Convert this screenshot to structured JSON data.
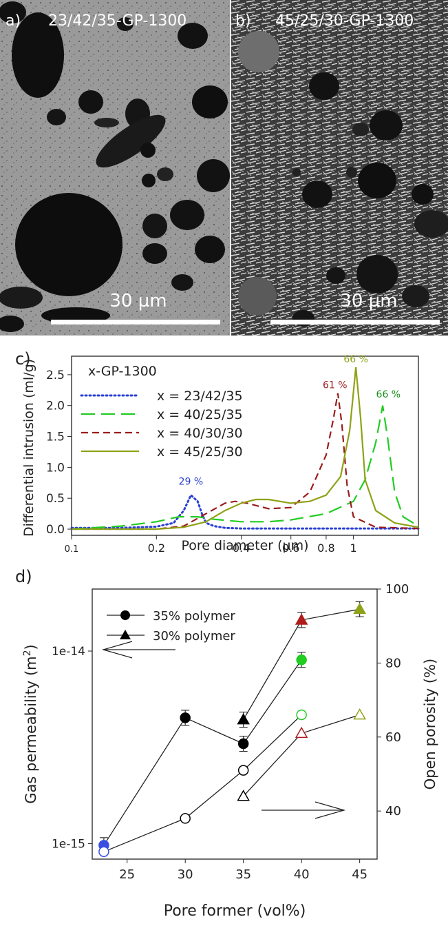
{
  "panels": {
    "a": {
      "letter": "a)",
      "label": "23/42/35-GP-1300",
      "scale": "30 µm"
    },
    "b": {
      "letter": "b)",
      "label": "45/25/30-GP-1300",
      "scale": "30 µm"
    },
    "c_letter": "c)",
    "d_letter": "d)"
  },
  "chart_data": [
    {
      "type": "line",
      "title": "x-GP-1300",
      "xlabel": "Pore diameter (µm)",
      "ylabel": "Differential intrusion (ml/g)",
      "xscale": "log",
      "xlim": [
        0.1,
        1.7
      ],
      "ylim": [
        -0.1,
        2.8
      ],
      "xticks": [
        "0.1",
        "0.2",
        "0.4",
        "0.6",
        "0.8",
        "1"
      ],
      "xtick_values": [
        0.1,
        0.2,
        0.4,
        0.6,
        0.8,
        1.0
      ],
      "yticks": [
        "0.0",
        "0.5",
        "1.0",
        "1.5",
        "2.0",
        "2.5"
      ],
      "ytick_values": [
        0.0,
        0.5,
        1.0,
        1.5,
        2.0,
        2.5
      ],
      "legend_position": "top-left",
      "series": [
        {
          "name": "x = 23/42/35",
          "color": "#2a3fd6",
          "dash": "dotted",
          "x": [
            0.1,
            0.15,
            0.2,
            0.23,
            0.25,
            0.265,
            0.28,
            0.29,
            0.3,
            0.32,
            0.35,
            0.4,
            0.6,
            1.0,
            1.7
          ],
          "y": [
            0.02,
            0.02,
            0.04,
            0.1,
            0.3,
            0.55,
            0.45,
            0.25,
            0.1,
            0.05,
            0.02,
            0.01,
            0.01,
            0.01,
            0.01
          ],
          "peak_label": "29 %",
          "peak_label_color": "#2a3fd6",
          "peak_label_at": [
            0.265,
            0.72
          ]
        },
        {
          "name": "x = 40/25/35",
          "color": "#22cc22",
          "dash": "long-dash",
          "x": [
            0.1,
            0.15,
            0.2,
            0.24,
            0.28,
            0.32,
            0.4,
            0.5,
            0.6,
            0.8,
            1.0,
            1.1,
            1.2,
            1.27,
            1.32,
            1.4,
            1.5,
            1.7
          ],
          "y": [
            0.0,
            0.05,
            0.12,
            0.2,
            0.2,
            0.16,
            0.12,
            0.12,
            0.15,
            0.25,
            0.45,
            0.8,
            1.4,
            2.0,
            1.5,
            0.6,
            0.2,
            0.05
          ],
          "peak_label": "66 %",
          "peak_label_color": "#1a8f1a",
          "peak_label_at": [
            1.33,
            2.13
          ]
        },
        {
          "name": "x = 40/30/30",
          "color": "#9b1c1c",
          "dash": "dashed",
          "x": [
            0.1,
            0.2,
            0.25,
            0.3,
            0.35,
            0.38,
            0.42,
            0.5,
            0.6,
            0.7,
            0.8,
            0.85,
            0.88,
            0.91,
            0.95,
            1.0,
            1.2,
            1.7
          ],
          "y": [
            0.0,
            0.0,
            0.05,
            0.25,
            0.42,
            0.45,
            0.42,
            0.33,
            0.35,
            0.6,
            1.2,
            1.8,
            2.2,
            1.7,
            0.7,
            0.2,
            0.03,
            0.01
          ],
          "peak_label": "61 %",
          "peak_label_color": "#9b1c1c",
          "peak_label_at": [
            0.86,
            2.28
          ]
        },
        {
          "name": "x = 45/25/30",
          "color": "#8fa116",
          "dash": "solid",
          "x": [
            0.1,
            0.2,
            0.25,
            0.3,
            0.35,
            0.4,
            0.45,
            0.5,
            0.6,
            0.7,
            0.8,
            0.9,
            0.97,
            1.02,
            1.06,
            1.1,
            1.2,
            1.4,
            1.7
          ],
          "y": [
            0.0,
            0.0,
            0.03,
            0.12,
            0.3,
            0.42,
            0.48,
            0.48,
            0.42,
            0.45,
            0.55,
            0.85,
            1.6,
            2.62,
            1.8,
            0.8,
            0.3,
            0.1,
            0.03
          ],
          "peak_label": "66 %",
          "peak_label_color": "#8fa116",
          "peak_label_at": [
            1.02,
            2.7
          ]
        }
      ]
    },
    {
      "type": "scatter",
      "xlabel": "Pore former (vol%)",
      "ylabel": "Gas permeability (m²)",
      "ylabel_main": "Gas permeability (m",
      "ylabel_sup": "2",
      "ylabel_close": ")",
      "y2label": "Open porosity (%)",
      "yscale": "log",
      "xlim": [
        22,
        46.5
      ],
      "ylim": [
        8.3e-16,
        2.1e-14
      ],
      "y2lim": [
        27,
        100
      ],
      "xticks": [
        "25",
        "30",
        "35",
        "40",
        "45"
      ],
      "xtick_values": [
        25,
        30,
        35,
        40,
        45
      ],
      "yticks": [
        "1e-14",
        "1e-15"
      ],
      "ytick_values": [
        1e-14,
        1e-15
      ],
      "y2ticks": [
        "40",
        "60",
        "80",
        "100"
      ],
      "y2tick_values": [
        40,
        60,
        80,
        100
      ],
      "legend_position": "top-left",
      "legend": [
        {
          "label": "35% polymer",
          "marker": "circle"
        },
        {
          "label": "30% polymer",
          "marker": "triangle"
        }
      ],
      "series": [
        {
          "name": "35% polymer",
          "marker": "circle",
          "filled": true,
          "axis": "left",
          "points": [
            {
              "x": 23,
              "y": 9.8e-16,
              "color": "#3a4fe0"
            },
            {
              "x": 30,
              "y": 4.5e-15,
              "color": "#000000"
            },
            {
              "x": 35,
              "y": 3.3e-15,
              "color": "#000000"
            },
            {
              "x": 40,
              "y": 9e-15,
              "color": "#22cc22"
            }
          ]
        },
        {
          "name": "30% polymer",
          "marker": "triangle",
          "filled": true,
          "axis": "left",
          "points": [
            {
              "x": 35,
              "y": 4.4e-15,
              "color": "#000000"
            },
            {
              "x": 40,
              "y": 1.45e-14,
              "color": "#b01c1c"
            },
            {
              "x": 45,
              "y": 1.65e-14,
              "color": "#8fa116"
            }
          ]
        },
        {
          "name": "open porosity 35%",
          "marker": "circle",
          "filled": false,
          "axis": "right",
          "points": [
            {
              "x": 23,
              "y": 29,
              "color": "#3a4fe0"
            },
            {
              "x": 30,
              "y": 38,
              "color": "#000000"
            },
            {
              "x": 35,
              "y": 51,
              "color": "#000000"
            },
            {
              "x": 40,
              "y": 66,
              "color": "#22cc22"
            }
          ]
        },
        {
          "name": "open porosity 30%",
          "marker": "triangle",
          "filled": false,
          "axis": "right",
          "points": [
            {
              "x": 35,
              "y": 44,
              "color": "#000000"
            },
            {
              "x": 40,
              "y": 61,
              "color": "#b01c1c"
            },
            {
              "x": 45,
              "y": 66,
              "color": "#8fa116"
            }
          ]
        }
      ]
    }
  ]
}
